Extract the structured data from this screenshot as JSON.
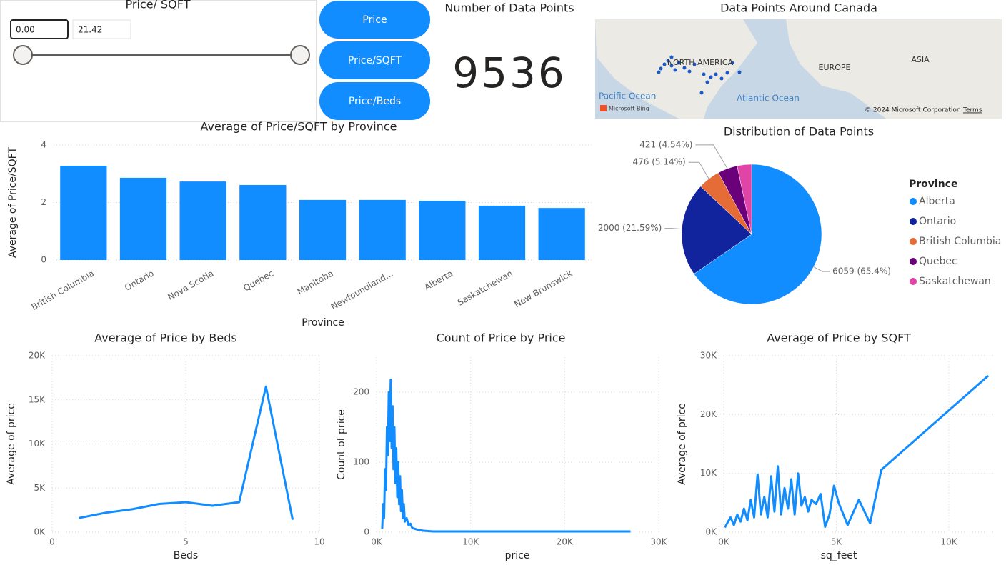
{
  "slicer": {
    "title": "Price/ SQFT",
    "min": "0.00",
    "max": "21.42"
  },
  "buttons": [
    "Price",
    "Price/SQFT",
    "Price/Beds"
  ],
  "card": {
    "title": "Number of Data Points",
    "value": 9536
  },
  "map": {
    "title": "Data Points Around Canada",
    "labels": [
      "NORTH AMERICA",
      "EUROPE",
      "ASIA",
      "Pacific Ocean",
      "Atlantic Ocean"
    ],
    "logo": "Microsoft Bing",
    "attribution": "© 2024 Microsoft Corporation",
    "terms": "Terms"
  },
  "chart_data": [
    {
      "type": "bar",
      "title": "Average of Price/SQFT by Province",
      "x_label": "Province",
      "y_label": "Average of Price/SQFT",
      "categories": [
        "British Columbia",
        "Ontario",
        "Nova Scotia",
        "Quebec",
        "Manitoba",
        "Newfoundland...",
        "Alberta",
        "Saskatchewan",
        "New Brunswick"
      ],
      "values": [
        3.28,
        2.86,
        2.73,
        2.61,
        2.09,
        2.09,
        2.06,
        1.89,
        1.81
      ],
      "color": "#118dff",
      "ylim": [
        0,
        4
      ],
      "yticks": [
        0,
        2,
        4
      ],
      "grid": true
    },
    {
      "type": "pie",
      "title": "Distribution of Data Points",
      "legend_title": "Province",
      "categories": [
        "Alberta",
        "Ontario",
        "British Columbia",
        "Quebec",
        "Saskatchewan"
      ],
      "values": [
        6059,
        2000,
        476,
        421,
        308
      ],
      "value_labels": [
        "6059 (65.4%)",
        "2000 (21.59%)",
        "476 (5.14%)",
        "421 (4.54%)",
        null
      ],
      "colors": [
        "#118dff",
        "#12239e",
        "#e66c37",
        "#6b007b",
        "#e044a7"
      ],
      "legend": "right"
    },
    {
      "type": "line",
      "title": "Average of Price by Beds",
      "x_label": "Beds",
      "y_label": "Average of price",
      "x": [
        1,
        2,
        3,
        4,
        5,
        6,
        7,
        8,
        9
      ],
      "values": [
        1600,
        2200,
        2600,
        3200,
        3400,
        3000,
        3400,
        16500,
        1400
      ],
      "color": "#118dff",
      "xlim": [
        0,
        10
      ],
      "xticks": [
        0,
        5,
        10
      ],
      "ylim": [
        0,
        20000
      ],
      "yticks": [
        {
          "value": 0,
          "label": "0K"
        },
        {
          "value": 5000,
          "label": "5K"
        },
        {
          "value": 10000,
          "label": "10K"
        },
        {
          "value": 15000,
          "label": "15K"
        },
        {
          "value": 20000,
          "label": "20K"
        }
      ],
      "grid": true
    },
    {
      "type": "line",
      "title": "Count of Price by Price",
      "x_label": "price",
      "y_label": "Count of price",
      "x": [
        600,
        700,
        800,
        900,
        1000,
        1100,
        1200,
        1300,
        1400,
        1500,
        1600,
        1700,
        1800,
        1900,
        2000,
        2100,
        2200,
        2300,
        2400,
        2500,
        2600,
        2700,
        2800,
        2900,
        3000,
        3200,
        3400,
        3600,
        3800,
        4000,
        4500,
        5000,
        6000,
        8000,
        12000,
        20000,
        27000
      ],
      "values": [
        5,
        40,
        20,
        90,
        60,
        150,
        110,
        200,
        130,
        218,
        120,
        180,
        90,
        150,
        70,
        120,
        50,
        100,
        40,
        80,
        30,
        60,
        20,
        40,
        15,
        20,
        10,
        12,
        6,
        5,
        3,
        2,
        1,
        1,
        1,
        1,
        1
      ],
      "color": "#118dff",
      "xlim": [
        0,
        30000
      ],
      "xticks": [
        {
          "value": 0,
          "label": "0K"
        },
        {
          "value": 10000,
          "label": "10K"
        },
        {
          "value": 20000,
          "label": "20K"
        },
        {
          "value": 30000,
          "label": "30K"
        }
      ],
      "ylim": [
        0,
        250
      ],
      "yticks": [
        0,
        100,
        200
      ],
      "grid": true
    },
    {
      "type": "line",
      "title": "Average of Price by SQFT",
      "x_label": "sq_feet",
      "y_label": "Average of price",
      "x": [
        50,
        150,
        300,
        450,
        600,
        750,
        900,
        1050,
        1200,
        1350,
        1500,
        1650,
        1800,
        1950,
        2100,
        2250,
        2400,
        2550,
        2700,
        2850,
        3000,
        3150,
        3300,
        3450,
        3600,
        3750,
        3900,
        4100,
        4300,
        4500,
        4700,
        4900,
        5100,
        5500,
        6000,
        6500,
        7000,
        11750
      ],
      "values": [
        800,
        1500,
        2500,
        1200,
        3000,
        1800,
        4000,
        2000,
        5500,
        2500,
        9800,
        3000,
        6000,
        2500,
        9500,
        3500,
        11200,
        3000,
        7500,
        4000,
        9000,
        3000,
        10000,
        4500,
        6000,
        3500,
        5500,
        4800,
        6500,
        900,
        3000,
        7900,
        5000,
        1200,
        5500,
        1500,
        10600,
        26600
      ],
      "color": "#118dff",
      "xlim": [
        0,
        12000
      ],
      "xticks": [
        {
          "value": 0,
          "label": "0K"
        },
        {
          "value": 5000,
          "label": "5K"
        },
        {
          "value": 10000,
          "label": "10K"
        }
      ],
      "ylim": [
        0,
        30000
      ],
      "yticks": [
        {
          "value": 0,
          "label": "0K"
        },
        {
          "value": 10000,
          "label": "10K"
        },
        {
          "value": 20000,
          "label": "20K"
        },
        {
          "value": 30000,
          "label": "30K"
        }
      ],
      "grid": true
    }
  ]
}
